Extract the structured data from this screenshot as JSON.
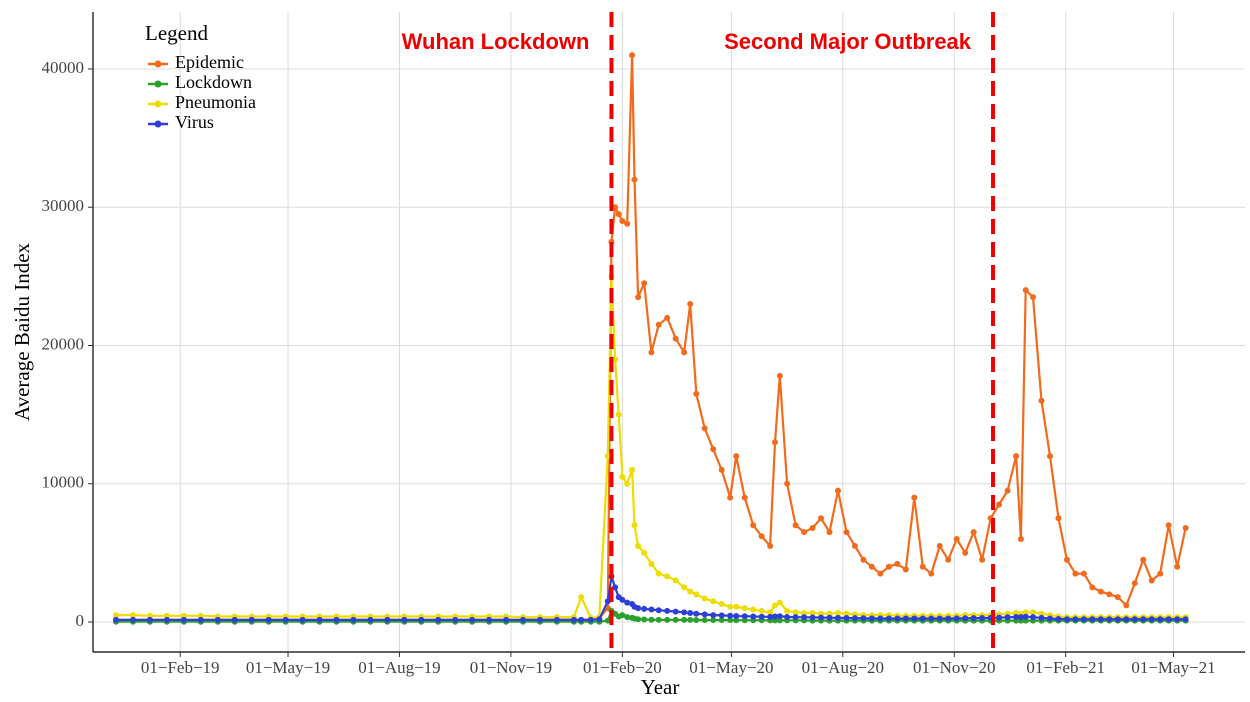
{
  "chart_data": {
    "type": "line",
    "x_label": "Year",
    "y_label": "Average Baidu Index",
    "legend_title": "Legend",
    "legend_position": "top-left",
    "grid": true,
    "annotations": [
      {
        "text": "Wuhan Lockdown",
        "x": "2020-01-23"
      },
      {
        "text": "Second Major Outbreak",
        "x": "2020-12-03"
      }
    ],
    "xlim": [
      "2018-11-21",
      "2021-06-29"
    ],
    "xticks": [
      {
        "value": "2019-02-01",
        "label": "01−Feb−19"
      },
      {
        "value": "2019-05-01",
        "label": "01−May−19"
      },
      {
        "value": "2019-08-01",
        "label": "01−Aug−19"
      },
      {
        "value": "2019-11-01",
        "label": "01−Nov−19"
      },
      {
        "value": "2020-02-01",
        "label": "01−Feb−20"
      },
      {
        "value": "2020-05-01",
        "label": "01−May−20"
      },
      {
        "value": "2020-08-01",
        "label": "01−Aug−20"
      },
      {
        "value": "2020-11-01",
        "label": "01−Nov−20"
      },
      {
        "value": "2021-02-01",
        "label": "01−Feb−21"
      },
      {
        "value": "2021-05-01",
        "label": "01−May−21"
      }
    ],
    "ylim": [
      -2170,
      44120
    ],
    "yticks": [
      0,
      10000,
      20000,
      30000,
      40000
    ],
    "x": [
      "2018-12-10",
      "2018-12-24",
      "2019-01-07",
      "2019-01-21",
      "2019-02-04",
      "2019-02-18",
      "2019-03-04",
      "2019-03-18",
      "2019-04-01",
      "2019-04-15",
      "2019-04-29",
      "2019-05-13",
      "2019-05-27",
      "2019-06-10",
      "2019-06-24",
      "2019-07-08",
      "2019-07-22",
      "2019-08-05",
      "2019-08-19",
      "2019-09-02",
      "2019-09-16",
      "2019-09-30",
      "2019-10-14",
      "2019-10-28",
      "2019-11-11",
      "2019-11-25",
      "2019-12-09",
      "2019-12-23",
      "2019-12-29",
      "2020-01-06",
      "2020-01-13",
      "2020-01-20",
      "2020-01-23",
      "2020-01-26",
      "2020-01-29",
      "2020-02-01",
      "2020-02-05",
      "2020-02-09",
      "2020-02-11",
      "2020-02-14",
      "2020-02-19",
      "2020-02-25",
      "2020-03-02",
      "2020-03-09",
      "2020-03-16",
      "2020-03-23",
      "2020-03-28",
      "2020-04-02",
      "2020-04-09",
      "2020-04-16",
      "2020-04-23",
      "2020-04-30",
      "2020-05-05",
      "2020-05-12",
      "2020-05-19",
      "2020-05-26",
      "2020-06-02",
      "2020-06-06",
      "2020-06-10",
      "2020-06-16",
      "2020-06-23",
      "2020-06-30",
      "2020-07-07",
      "2020-07-14",
      "2020-07-21",
      "2020-07-28",
      "2020-08-04",
      "2020-08-11",
      "2020-08-18",
      "2020-08-25",
      "2020-09-01",
      "2020-09-08",
      "2020-09-15",
      "2020-09-22",
      "2020-09-29",
      "2020-10-06",
      "2020-10-13",
      "2020-10-20",
      "2020-10-27",
      "2020-11-03",
      "2020-11-10",
      "2020-11-17",
      "2020-11-24",
      "2020-12-01",
      "2020-12-08",
      "2020-12-15",
      "2020-12-22",
      "2020-12-26",
      "2020-12-30",
      "2021-01-05",
      "2021-01-12",
      "2021-01-19",
      "2021-01-26",
      "2021-02-02",
      "2021-02-09",
      "2021-02-16",
      "2021-02-23",
      "2021-03-02",
      "2021-03-09",
      "2021-03-16",
      "2021-03-23",
      "2021-03-30",
      "2021-04-06",
      "2021-04-13",
      "2021-04-20",
      "2021-04-27",
      "2021-05-04",
      "2021-05-11"
    ],
    "series": [
      {
        "name": "Epidemic",
        "color": "#f26b1d",
        "values": [
          150,
          150,
          150,
          150,
          150,
          150,
          150,
          150,
          150,
          150,
          150,
          150,
          150,
          150,
          150,
          150,
          150,
          150,
          150,
          150,
          150,
          150,
          150,
          150,
          150,
          150,
          150,
          150,
          150,
          200,
          300,
          1000,
          27500,
          30000,
          29500,
          29000,
          28800,
          41000,
          32000,
          23500,
          24500,
          19500,
          21500,
          22000,
          20500,
          19500,
          23000,
          16500,
          14000,
          12500,
          11000,
          9000,
          12000,
          9000,
          7000,
          6200,
          5500,
          13000,
          17800,
          10000,
          7000,
          6500,
          6800,
          7500,
          6500,
          9500,
          6500,
          5500,
          4500,
          4000,
          3500,
          4000,
          4200,
          3800,
          9000,
          4000,
          3500,
          5500,
          4500,
          6000,
          5000,
          6500,
          4500,
          7500,
          8500,
          9500,
          12000,
          6000,
          24000,
          23500,
          16000,
          12000,
          7500,
          4500,
          3500,
          3500,
          2500,
          2200,
          2000,
          1800,
          1200,
          2800,
          4500,
          3000,
          3500,
          7000,
          4000,
          6800
        ]
      },
      {
        "name": "Lockdown",
        "color": "#2ca02c",
        "values": [
          20,
          20,
          20,
          20,
          20,
          20,
          20,
          20,
          20,
          20,
          20,
          20,
          20,
          20,
          20,
          20,
          20,
          20,
          20,
          20,
          20,
          20,
          20,
          20,
          20,
          20,
          20,
          20,
          20,
          20,
          20,
          100,
          800,
          600,
          400,
          500,
          350,
          300,
          250,
          200,
          180,
          160,
          150,
          150,
          150,
          150,
          150,
          140,
          140,
          140,
          140,
          140,
          130,
          130,
          130,
          130,
          120,
          120,
          120,
          120,
          120,
          120,
          100,
          100,
          100,
          100,
          100,
          100,
          100,
          100,
          100,
          100,
          100,
          100,
          100,
          100,
          100,
          100,
          100,
          100,
          100,
          100,
          100,
          100,
          100,
          100,
          100,
          100,
          100,
          100,
          100,
          100,
          100,
          100,
          100,
          100,
          100,
          100,
          100,
          100,
          100,
          100,
          100,
          100,
          100,
          100,
          100,
          100
        ]
      },
      {
        "name": "Pneumonia",
        "color": "#eedd00",
        "values": [
          500,
          500,
          450,
          450,
          450,
          450,
          400,
          400,
          400,
          400,
          400,
          400,
          400,
          400,
          400,
          400,
          400,
          400,
          400,
          400,
          400,
          400,
          400,
          400,
          350,
          350,
          350,
          350,
          1800,
          300,
          350,
          12000,
          25000,
          19000,
          15000,
          10500,
          10000,
          11000,
          7000,
          5500,
          5000,
          4200,
          3500,
          3300,
          3000,
          2500,
          2200,
          2000,
          1700,
          1500,
          1300,
          1100,
          1100,
          1000,
          900,
          800,
          700,
          1200,
          1400,
          800,
          700,
          650,
          650,
          600,
          600,
          650,
          600,
          550,
          500,
          500,
          500,
          500,
          450,
          450,
          450,
          450,
          450,
          450,
          450,
          450,
          500,
          500,
          500,
          500,
          550,
          600,
          650,
          600,
          700,
          700,
          600,
          500,
          400,
          350,
          350,
          350,
          350,
          350,
          350,
          350,
          350,
          350,
          350,
          350,
          350,
          350,
          350,
          350
        ]
      },
      {
        "name": "Virus",
        "color": "#2e3fd6",
        "values": [
          150,
          150,
          150,
          150,
          150,
          150,
          150,
          150,
          150,
          150,
          150,
          150,
          150,
          150,
          150,
          150,
          150,
          150,
          150,
          150,
          150,
          150,
          150,
          150,
          150,
          150,
          150,
          150,
          150,
          150,
          200,
          1500,
          3300,
          2500,
          1800,
          1600,
          1400,
          1300,
          1100,
          1000,
          950,
          900,
          850,
          800,
          750,
          700,
          650,
          600,
          550,
          500,
          480,
          450,
          430,
          420,
          400,
          380,
          370,
          400,
          420,
          360,
          350,
          340,
          330,
          320,
          310,
          300,
          290,
          280,
          270,
          260,
          250,
          250,
          250,
          250,
          250,
          250,
          250,
          250,
          250,
          260,
          270,
          280,
          290,
          300,
          320,
          340,
          360,
          350,
          380,
          350,
          300,
          250,
          220,
          200,
          200,
          200,
          200,
          200,
          200,
          200,
          200,
          200,
          200,
          200,
          200,
          200,
          200,
          200
        ]
      }
    ]
  }
}
